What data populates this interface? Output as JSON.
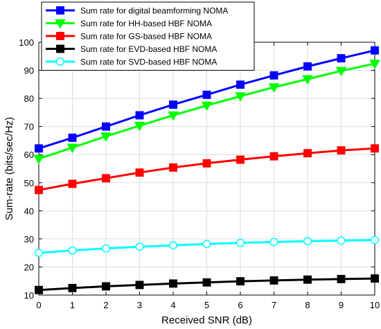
{
  "chart_data": {
    "type": "line",
    "title": "",
    "xlabel": "Received SNR (dB)",
    "ylabel": "Sum-rate (bits/sec/Hz)",
    "xlim": [
      0,
      10
    ],
    "ylim": [
      10,
      100
    ],
    "xticks": [
      "0",
      "1",
      "2",
      "3",
      "4",
      "5",
      "6",
      "7",
      "8",
      "9",
      "10"
    ],
    "yticks": [
      "10",
      "20",
      "30",
      "40",
      "50",
      "60",
      "70",
      "80",
      "90",
      "100"
    ],
    "grid": true,
    "legend_position": "top-left",
    "x": [
      0,
      1,
      2,
      3,
      4,
      5,
      6,
      7,
      8,
      9,
      10
    ],
    "series": [
      {
        "name": "Sum rate for digital beamforming NOMA",
        "color": "#0000ff",
        "marker": "square",
        "values": [
          62.2,
          66.0,
          70.0,
          74.0,
          77.8,
          81.3,
          84.9,
          88.2,
          91.4,
          94.3,
          97.1
        ]
      },
      {
        "name": "Sum rate for HH-based HBF NOMA",
        "color": "#00ff00",
        "marker": "triangle-down",
        "values": [
          58.5,
          62.5,
          66.5,
          70.3,
          74.0,
          77.5,
          80.8,
          84.0,
          86.9,
          89.8,
          92.4
        ]
      },
      {
        "name": "Sum rate for GS-based HBF NOMA",
        "color": "#ff0000",
        "marker": "square",
        "values": [
          47.4,
          49.6,
          51.6,
          53.6,
          55.4,
          56.9,
          58.2,
          59.4,
          60.5,
          61.5,
          62.2
        ]
      },
      {
        "name": "Sum rate for EVD-based HBF NOMA",
        "color": "#000000",
        "marker": "square",
        "values": [
          11.8,
          12.5,
          13.1,
          13.6,
          14.1,
          14.5,
          14.9,
          15.2,
          15.5,
          15.7,
          15.9
        ]
      },
      {
        "name": "Sum rate for SVD-based HBF NOMA",
        "color": "#00ffff",
        "marker": "circle",
        "values": [
          25.0,
          25.9,
          26.6,
          27.2,
          27.7,
          28.2,
          28.6,
          28.9,
          29.2,
          29.4,
          29.6
        ]
      }
    ]
  }
}
